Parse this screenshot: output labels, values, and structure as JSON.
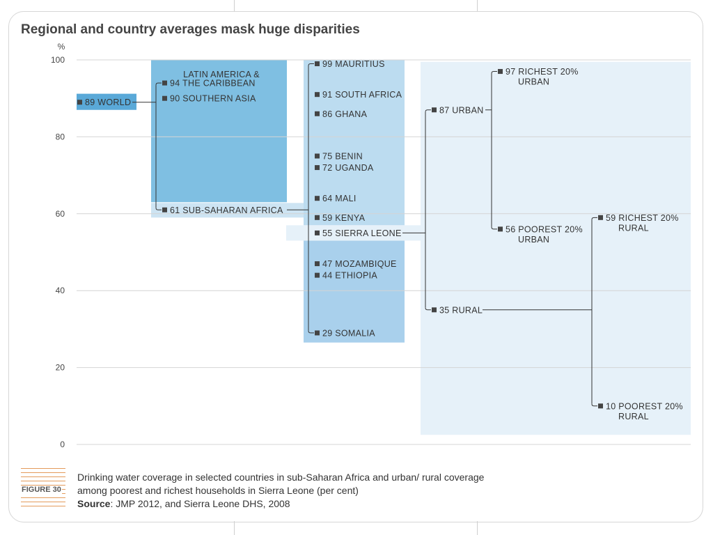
{
  "title": "Regional and country averages mask huge disparities",
  "colors": {
    "world_box": "#5aa9d8",
    "region_box": "#7fbfe2",
    "region_box_light": "#cde4f3",
    "country_box": "#bcdcf0",
    "country_box_low": "#a9d0ec",
    "sierra_box": "#e6f1f9",
    "marker": "#444444",
    "line": "#333333",
    "grid": "#d4d4d4"
  },
  "chart_data": {
    "type": "bar",
    "ylabel": "%",
    "ylim": [
      0,
      100
    ],
    "yticks": [
      0,
      20,
      40,
      60,
      80,
      100
    ],
    "series": [
      {
        "group": "world",
        "points": [
          {
            "value": 89,
            "label": "89 WORLD"
          }
        ]
      },
      {
        "group": "regions",
        "header": "LATIN AMERICA &",
        "points": [
          {
            "value": 94,
            "label": "94 THE CARIBBEAN"
          },
          {
            "value": 90,
            "label": "90 SOUTHERN ASIA"
          },
          {
            "value": 61,
            "label": "61 SUB-SAHARAN AFRICA"
          }
        ]
      },
      {
        "group": "countries",
        "points": [
          {
            "value": 99,
            "label": "99 MAURITIUS"
          },
          {
            "value": 91,
            "label": "91 SOUTH AFRICA"
          },
          {
            "value": 86,
            "label": "86 GHANA"
          },
          {
            "value": 75,
            "label": "75 BENIN"
          },
          {
            "value": 72,
            "label": "72 UGANDA"
          },
          {
            "value": 64,
            "label": "64 MALI"
          },
          {
            "value": 59,
            "label": "59 KENYA"
          },
          {
            "value": 55,
            "label": "55 SIERRA LEONE"
          },
          {
            "value": 47,
            "label": "47 MOZAMBIQUE"
          },
          {
            "value": 44,
            "label": "44 ETHIOPIA"
          },
          {
            "value": 29,
            "label": "29 SOMALIA"
          }
        ]
      },
      {
        "group": "sierra_leone_area",
        "points": [
          {
            "value": 87,
            "label": "87 URBAN"
          },
          {
            "value": 35,
            "label": "35 RURAL"
          }
        ]
      },
      {
        "group": "sierra_leone_wealth",
        "points": [
          {
            "value": 97,
            "label": "97 RICHEST 20%",
            "sub": "URBAN"
          },
          {
            "value": 56,
            "label": "56 POOREST 20%",
            "sub": "URBAN"
          },
          {
            "value": 59,
            "label": "59 RICHEST 20%",
            "sub": "RURAL"
          },
          {
            "value": 10,
            "label": "10 POOREST 20%",
            "sub": "RURAL"
          }
        ]
      }
    ]
  },
  "figure": {
    "tag": "FIGURE 30",
    "caption": "Drinking water coverage in selected countries in sub-Saharan Africa and urban/ rural coverage among poorest and richest households in Sierra Leone (per cent)",
    "source_label": "Source",
    "source_text": ": JMP 2012, and Sierra Leone DHS, 2008"
  }
}
